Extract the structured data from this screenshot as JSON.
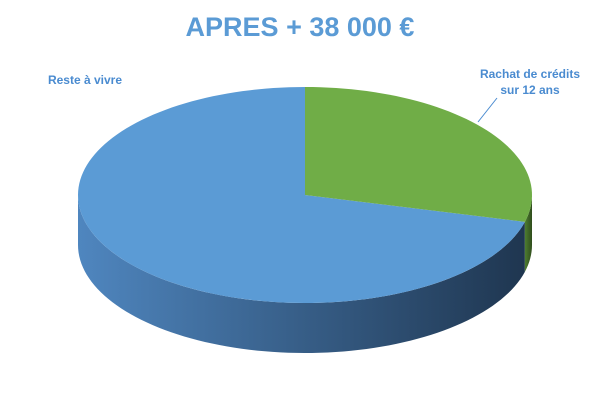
{
  "chart_data": {
    "type": "pie3d",
    "title": "APRES + 38 000 €",
    "categories": [
      "Reste à vivre",
      "Rachat de crédits sur 12 ans"
    ],
    "values": [
      71,
      29
    ],
    "colors": [
      "#5b9bd5",
      "#70ad47"
    ]
  }
}
